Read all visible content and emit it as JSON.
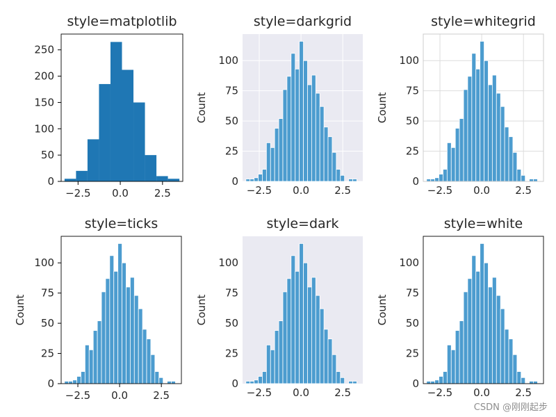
{
  "chart_data": [
    {
      "type": "bar",
      "title": "style=matplotlib",
      "xlabel": "",
      "ylabel": "",
      "xlim": [
        -3.5,
        3.7
      ],
      "ylim": [
        0,
        280
      ],
      "xticks": [
        -2.5,
        0.0,
        2.5
      ],
      "xtick_labels": [
        "−2.5",
        "0.0",
        "2.5"
      ],
      "yticks": [
        0,
        50,
        100,
        150,
        200,
        250
      ],
      "ytick_labels": [
        "0",
        "50",
        "100",
        "150",
        "200",
        "250"
      ],
      "grid": false,
      "bar_color": "#1f77b4",
      "edge_color": "none",
      "bin_edges": [
        -3.3,
        -2.62,
        -1.94,
        -1.26,
        -0.58,
        0.1,
        0.78,
        1.46,
        2.14,
        2.82,
        3.5
      ],
      "values": [
        5,
        20,
        80,
        185,
        265,
        212,
        150,
        50,
        10,
        5
      ]
    },
    {
      "type": "bar",
      "title": "style=darkgrid",
      "xlabel": "",
      "ylabel": "Count",
      "xlim": [
        -3.5,
        3.7
      ],
      "ylim": [
        0,
        122
      ],
      "xticks": [
        -2.5,
        0.0,
        2.5
      ],
      "xtick_labels": [
        "−2.5",
        "0.0",
        "2.5"
      ],
      "yticks": [
        0,
        25,
        50,
        75,
        100
      ],
      "ytick_labels": [
        "0",
        "25",
        "50",
        "75",
        "100"
      ],
      "grid": true,
      "background": "#eaeaf2",
      "bar_color": "#4c9ccf",
      "edge_color": "#ffffff",
      "bin_edges": [
        -3.3,
        -3.054,
        -2.808,
        -2.562,
        -2.316,
        -2.07,
        -1.824,
        -1.578,
        -1.332,
        -1.086,
        -0.84,
        -0.594,
        -0.348,
        -0.102,
        0.144,
        0.39,
        0.636,
        0.882,
        1.128,
        1.374,
        1.62,
        1.866,
        2.112,
        2.358,
        2.604,
        2.85,
        3.096,
        3.342
      ],
      "values": [
        2,
        2,
        3,
        6,
        10,
        32,
        28,
        44,
        52,
        76,
        87,
        106,
        93,
        116,
        100,
        80,
        88,
        73,
        62,
        45,
        37,
        24,
        10,
        5,
        0,
        2,
        2
      ]
    },
    {
      "type": "bar",
      "title": "style=whitegrid",
      "xlabel": "",
      "ylabel": "Count",
      "xlim": [
        -3.5,
        3.7
      ],
      "ylim": [
        0,
        122
      ],
      "xticks": [
        -2.5,
        0.0,
        2.5
      ],
      "xtick_labels": [
        "−2.5",
        "0.0",
        "2.5"
      ],
      "yticks": [
        0,
        25,
        50,
        75,
        100
      ],
      "ytick_labels": [
        "0",
        "25",
        "50",
        "75",
        "100"
      ],
      "grid": true,
      "background": "#ffffff",
      "bar_color": "#4c9ccf",
      "edge_color": "#ffffff",
      "bin_edges": [
        -3.3,
        -3.054,
        -2.808,
        -2.562,
        -2.316,
        -2.07,
        -1.824,
        -1.578,
        -1.332,
        -1.086,
        -0.84,
        -0.594,
        -0.348,
        -0.102,
        0.144,
        0.39,
        0.636,
        0.882,
        1.128,
        1.374,
        1.62,
        1.866,
        2.112,
        2.358,
        2.604,
        2.85,
        3.096,
        3.342
      ],
      "values": [
        2,
        2,
        3,
        6,
        10,
        32,
        28,
        44,
        52,
        76,
        87,
        106,
        93,
        116,
        100,
        80,
        88,
        73,
        62,
        45,
        37,
        24,
        10,
        5,
        0,
        2,
        2
      ]
    },
    {
      "type": "bar",
      "title": "style=ticks",
      "xlabel": "",
      "ylabel": "Count",
      "xlim": [
        -3.5,
        3.7
      ],
      "ylim": [
        0,
        122
      ],
      "xticks": [
        -2.5,
        0.0,
        2.5
      ],
      "xtick_labels": [
        "−2.5",
        "0.0",
        "2.5"
      ],
      "yticks": [
        0,
        25,
        50,
        75,
        100
      ],
      "ytick_labels": [
        "0",
        "25",
        "50",
        "75",
        "100"
      ],
      "grid": false,
      "background": "#ffffff",
      "bar_color": "#4c9ccf",
      "edge_color": "#ffffff",
      "bin_edges": [
        -3.3,
        -3.054,
        -2.808,
        -2.562,
        -2.316,
        -2.07,
        -1.824,
        -1.578,
        -1.332,
        -1.086,
        -0.84,
        -0.594,
        -0.348,
        -0.102,
        0.144,
        0.39,
        0.636,
        0.882,
        1.128,
        1.374,
        1.62,
        1.866,
        2.112,
        2.358,
        2.604,
        2.85,
        3.096,
        3.342
      ],
      "values": [
        2,
        2,
        3,
        6,
        10,
        32,
        28,
        44,
        52,
        76,
        87,
        106,
        93,
        116,
        100,
        80,
        88,
        73,
        62,
        45,
        37,
        24,
        10,
        5,
        0,
        2,
        2
      ]
    },
    {
      "type": "bar",
      "title": "style=dark",
      "xlabel": "",
      "ylabel": "Count",
      "xlim": [
        -3.5,
        3.7
      ],
      "ylim": [
        0,
        122
      ],
      "xticks": [
        -2.5,
        0.0,
        2.5
      ],
      "xtick_labels": [
        "−2.5",
        "0.0",
        "2.5"
      ],
      "yticks": [
        0,
        25,
        50,
        75,
        100
      ],
      "ytick_labels": [
        "0",
        "25",
        "50",
        "75",
        "100"
      ],
      "grid": false,
      "background": "#eaeaf2",
      "bar_color": "#4c9ccf",
      "edge_color": "#ffffff",
      "bin_edges": [
        -3.3,
        -3.054,
        -2.808,
        -2.562,
        -2.316,
        -2.07,
        -1.824,
        -1.578,
        -1.332,
        -1.086,
        -0.84,
        -0.594,
        -0.348,
        -0.102,
        0.144,
        0.39,
        0.636,
        0.882,
        1.128,
        1.374,
        1.62,
        1.866,
        2.112,
        2.358,
        2.604,
        2.85,
        3.096,
        3.342
      ],
      "values": [
        2,
        2,
        3,
        6,
        10,
        32,
        28,
        44,
        52,
        76,
        87,
        106,
        93,
        116,
        100,
        80,
        88,
        73,
        62,
        45,
        37,
        24,
        10,
        5,
        0,
        2,
        2
      ]
    },
    {
      "type": "bar",
      "title": "style=white",
      "xlabel": "",
      "ylabel": "Count",
      "xlim": [
        -3.5,
        3.7
      ],
      "ylim": [
        0,
        122
      ],
      "xticks": [
        -2.5,
        0.0,
        2.5
      ],
      "xtick_labels": [
        "−2.5",
        "0.0",
        "2.5"
      ],
      "yticks": [
        0,
        25,
        50,
        75,
        100
      ],
      "ytick_labels": [
        "0",
        "25",
        "50",
        "75",
        "100"
      ],
      "grid": false,
      "background": "#ffffff",
      "bar_color": "#4c9ccf",
      "edge_color": "#ffffff",
      "bin_edges": [
        -3.3,
        -3.054,
        -2.808,
        -2.562,
        -2.316,
        -2.07,
        -1.824,
        -1.578,
        -1.332,
        -1.086,
        -0.84,
        -0.594,
        -0.348,
        -0.102,
        0.144,
        0.39,
        0.636,
        0.882,
        1.128,
        1.374,
        1.62,
        1.866,
        2.112,
        2.358,
        2.604,
        2.85,
        3.096,
        3.342
      ],
      "values": [
        2,
        2,
        3,
        6,
        10,
        32,
        28,
        44,
        52,
        76,
        87,
        106,
        93,
        116,
        100,
        80,
        88,
        73,
        62,
        45,
        37,
        24,
        10,
        5,
        0,
        2,
        2
      ]
    }
  ],
  "watermark": "CSDN @刚刚起步"
}
